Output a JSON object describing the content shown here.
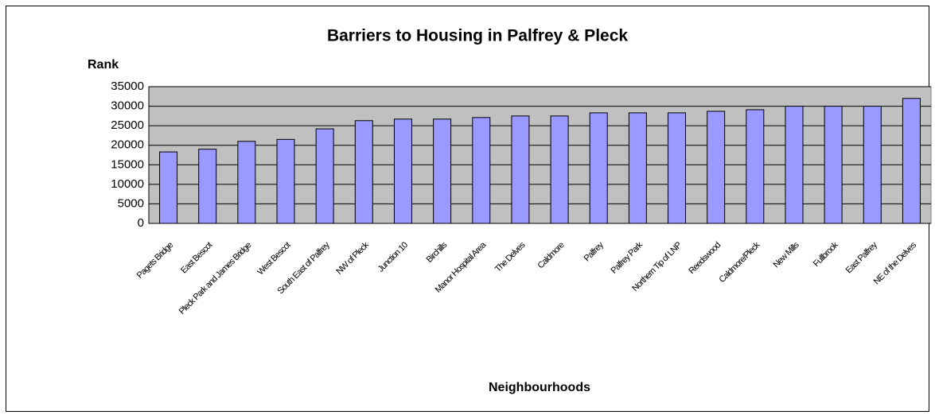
{
  "chart_data": {
    "type": "bar",
    "title": "Barriers to Housing in Palfrey & Pleck",
    "y_label": "Rank",
    "x_label": "Neighbourhoods",
    "categories": [
      "Pagets Bridge",
      "East Bescot",
      "Pleck Park and James Bridge",
      "West Bescot",
      "South East of Palfrey",
      "NW of Pleck",
      "Junction 10",
      "Birchills",
      "Manor Hospital Area",
      "The Delves",
      "Caldmore",
      "Palfrey",
      "Palfrey Park",
      "Northern Tip of LNP",
      "Reedswood",
      "Caldmore/Pleck",
      "New Mills",
      "Fullbrook",
      "East Palfrey",
      "NE of the Delves"
    ],
    "values": [
      18300,
      19000,
      21000,
      21500,
      24200,
      26300,
      26700,
      26700,
      27100,
      27500,
      27500,
      28300,
      28300,
      28300,
      28700,
      29100,
      30000,
      30000,
      30000,
      32000
    ],
    "color": "#9999ff",
    "ylim": [
      0,
      35000
    ],
    "yticks": [
      0,
      5000,
      10000,
      15000,
      20000,
      25000,
      30000,
      35000
    ],
    "grid": true
  }
}
